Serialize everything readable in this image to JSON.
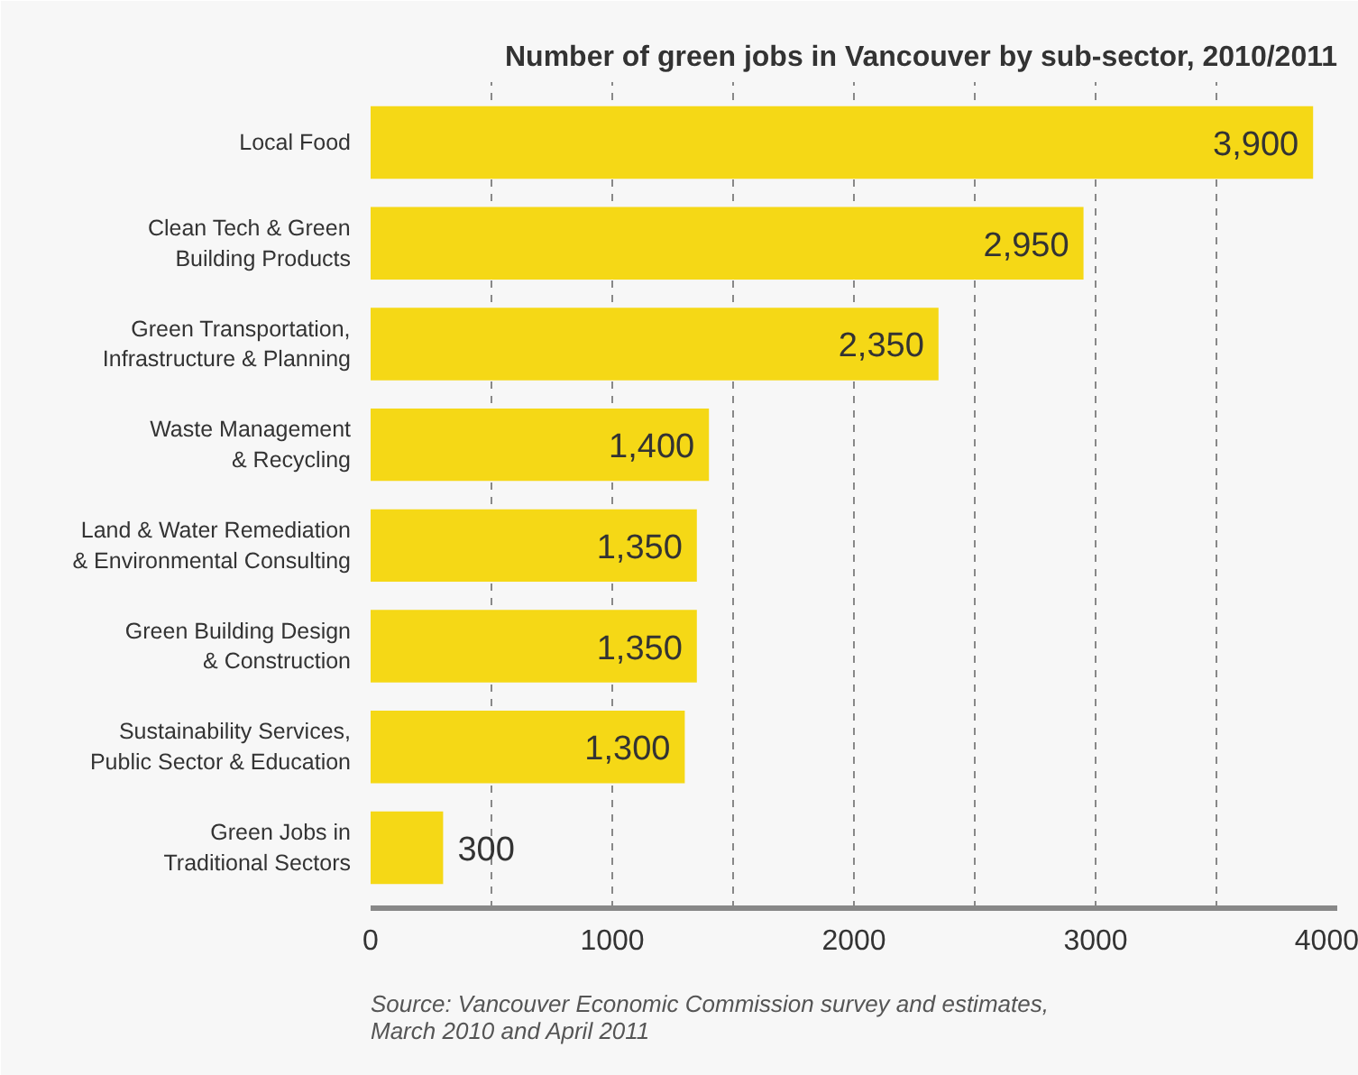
{
  "chart_data": {
    "type": "bar",
    "orientation": "horizontal",
    "title": "Number of green jobs in Vancouver by sub-sector, 2010/2011",
    "categories": [
      "Local Food",
      "Clean Tech & Green Building Products",
      "Green Transportation, Infrastructure & Planning",
      "Waste Management & Recycling",
      "Land & Water Remediation & Environmental Consulting",
      "Green Building Design & Construction",
      "Sustainability Services, Public Sector & Education",
      "Green Jobs in Traditional Sectors"
    ],
    "values": [
      3900,
      2950,
      2350,
      1400,
      1350,
      1350,
      1300,
      300
    ],
    "value_labels": [
      "3,900",
      "2,950",
      "2,350",
      "1,400",
      "1,350",
      "1,350",
      "1,300",
      "300"
    ],
    "color": "#f5d816",
    "xlim": [
      0,
      4000
    ],
    "xticks": [
      0,
      {
        "value": 500,
        "label": null
      },
      1000,
      {
        "value": 1500,
        "label": null
      },
      2000,
      {
        "value": 2500,
        "label": null
      },
      3000,
      {
        "value": 3500,
        "label": null
      },
      4000
    ],
    "grid": "x",
    "annotations": [
      "Source: Vancouver Economic Commission survey and estimates, March 2010 and April 2011"
    ]
  }
}
